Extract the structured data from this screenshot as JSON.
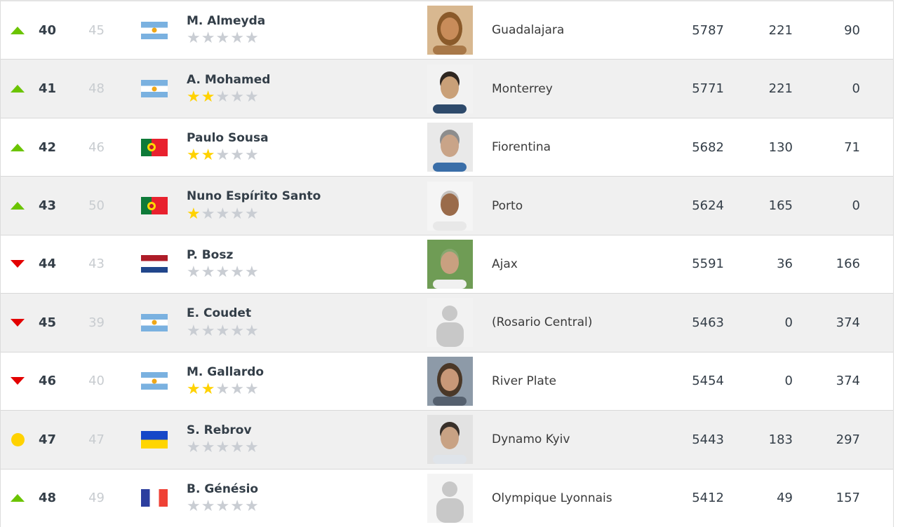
{
  "page": {
    "title": "Football manager world ranking"
  },
  "colors": {
    "trend_up": "#6bc400",
    "trend_down": "#e30000",
    "trend_same": "#ffd200",
    "star_on": "#ffd200",
    "star_off": "#c9cdd3",
    "row_alt_bg": "#f0f0f0",
    "text_dark": "#343e48",
    "text_muted": "#c8ccd0"
  },
  "icons": {
    "star_glyph": "★",
    "trend_up_icon": "up-triangle",
    "trend_down_icon": "down-triangle",
    "trend_same_icon": "yellow-dot"
  },
  "table": {
    "rows": [
      {
        "trend": "up",
        "rank": "40",
        "prev": "45",
        "country": "argentina",
        "name": "M. Almeyda",
        "stars": 0,
        "club": "Guadalajara",
        "points": "5787",
        "col2": "221",
        "col3": "90",
        "avatar": {
          "type": "portrait",
          "hair_style": "long",
          "bg": "#d8b890",
          "hair": "#8a5a2a",
          "skin": "#c88c5a",
          "shirt": "#a87848"
        }
      },
      {
        "trend": "up",
        "rank": "41",
        "prev": "48",
        "country": "argentina",
        "name": "A. Mohamed",
        "stars": 2,
        "club": "Monterrey",
        "points": "5771",
        "col2": "221",
        "col3": "0",
        "avatar": {
          "type": "portrait",
          "hair_style": "short",
          "bg": "#f2f2f2",
          "hair": "#2e2620",
          "skin": "#c9a078",
          "shirt": "#2e4a6b"
        }
      },
      {
        "trend": "up",
        "rank": "42",
        "prev": "46",
        "country": "portugal",
        "name": "Paulo Sousa",
        "stars": 2,
        "club": "Fiorentina",
        "points": "5682",
        "col2": "130",
        "col3": "71",
        "avatar": {
          "type": "portrait",
          "hair_style": "short",
          "bg": "#e9e9e9",
          "hair": "#8d8d8d",
          "skin": "#c9a488",
          "shirt": "#3a6ea8"
        }
      },
      {
        "trend": "up",
        "rank": "43",
        "prev": "50",
        "country": "portugal",
        "name": "Nuno Espírito Santo",
        "stars": 1,
        "club": "Porto",
        "points": "5624",
        "col2": "165",
        "col3": "0",
        "avatar": {
          "type": "portrait",
          "hair_style": "bald",
          "bg": "#f5f5f5",
          "hair": "#3a3028",
          "skin": "#9a6b4a",
          "shirt": "#e8e8e8"
        }
      },
      {
        "trend": "down",
        "rank": "44",
        "prev": "43",
        "country": "netherlands",
        "name": "P. Bosz",
        "stars": 0,
        "club": "Ajax",
        "points": "5591",
        "col2": "36",
        "col3": "166",
        "avatar": {
          "type": "portrait",
          "hair_style": "bald",
          "bg": "#6f9c55",
          "hair": "#cfc8c0",
          "skin": "#c9a080",
          "shirt": "#f0f0f0"
        }
      },
      {
        "trend": "down",
        "rank": "45",
        "prev": "39",
        "country": "argentina",
        "name": "E. Coudet",
        "stars": 0,
        "club": "(Rosario Central)",
        "points": "5463",
        "col2": "0",
        "col3": "374",
        "avatar": {
          "type": "silhouette",
          "bg": "#f2f2f2",
          "fg": "#c8c8c8"
        }
      },
      {
        "trend": "down",
        "rank": "46",
        "prev": "40",
        "country": "argentina",
        "name": "M. Gallardo",
        "stars": 2,
        "club": "River Plate",
        "points": "5454",
        "col2": "0",
        "col3": "374",
        "avatar": {
          "type": "portrait",
          "hair_style": "long",
          "bg": "#8d9aa8",
          "hair": "#4a3828",
          "skin": "#c89878",
          "shirt": "#55606e"
        }
      },
      {
        "trend": "same",
        "rank": "47",
        "prev": "47",
        "country": "ukraine",
        "name": "S. Rebrov",
        "stars": 0,
        "club": "Dynamo Kyiv",
        "points": "5443",
        "col2": "183",
        "col3": "297",
        "avatar": {
          "type": "portrait",
          "hair_style": "short",
          "bg": "#e2e2e2",
          "hair": "#38302a",
          "skin": "#c8a284",
          "shirt": "#dfe4ea"
        }
      },
      {
        "trend": "up",
        "rank": "48",
        "prev": "49",
        "country": "france",
        "name": "B. Génésio",
        "stars": 0,
        "club": "Olympique Lyonnais",
        "points": "5412",
        "col2": "49",
        "col3": "157",
        "avatar": {
          "type": "silhouette",
          "bg": "#f4f4f4",
          "fg": "#c8c8c8"
        }
      }
    ]
  }
}
